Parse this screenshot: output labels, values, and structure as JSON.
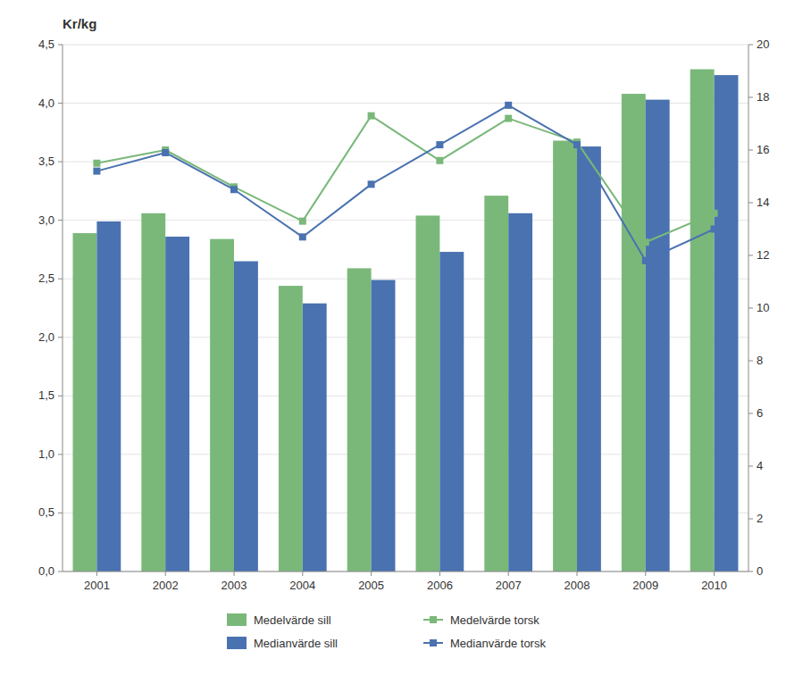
{
  "chart_data": {
    "type": "bar",
    "ylabel": "Kr/kg",
    "categories": [
      "2001",
      "2002",
      "2003",
      "2004",
      "2005",
      "2006",
      "2007",
      "2008",
      "2009",
      "2010"
    ],
    "series": [
      {
        "name": "Medelvärde sill",
        "color": "#7ab87a",
        "values": [
          2.89,
          3.06,
          2.84,
          2.44,
          2.59,
          3.04,
          3.21,
          3.68,
          4.08,
          4.29
        ]
      },
      {
        "name": "Medianvärde sill",
        "color": "#4a72b0",
        "values": [
          2.99,
          2.86,
          2.65,
          2.29,
          2.49,
          2.73,
          3.06,
          3.63,
          4.03,
          4.24
        ]
      },
      {
        "name": "Medelvärde torsk",
        "color": "#7ab87a",
        "type": "line",
        "marker": "square",
        "axis": "y2",
        "values": [
          15.5,
          16.0,
          14.6,
          13.3,
          17.3,
          15.6,
          17.2,
          16.3,
          12.5,
          13.6
        ]
      },
      {
        "name": "Medianvärde torsk",
        "color": "#4a72b0",
        "type": "line",
        "marker": "square",
        "axis": "y2",
        "values": [
          15.2,
          15.9,
          14.5,
          12.7,
          14.7,
          16.2,
          17.7,
          16.2,
          11.8,
          13.0
        ]
      }
    ],
    "ylim": [
      0,
      4.5
    ],
    "yticks": [
      {
        "value": 0.0,
        "label": "0,0"
      },
      {
        "value": 0.5,
        "label": "0,5"
      },
      {
        "value": 1.0,
        "label": "1,0"
      },
      {
        "value": 1.5,
        "label": "1,5"
      },
      {
        "value": 2.0,
        "label": "2,0"
      },
      {
        "value": 2.5,
        "label": "2,5"
      },
      {
        "value": 3.0,
        "label": "3,0"
      },
      {
        "value": 3.5,
        "label": "3,5"
      },
      {
        "value": 4.0,
        "label": "4,0"
      },
      {
        "value": 4.5,
        "label": "4,5"
      }
    ],
    "y2lim": [
      0,
      20
    ],
    "y2ticks": [
      0,
      2,
      4,
      6,
      8,
      10,
      12,
      14,
      16,
      18,
      20
    ],
    "grid": true,
    "legend": "bottom"
  }
}
